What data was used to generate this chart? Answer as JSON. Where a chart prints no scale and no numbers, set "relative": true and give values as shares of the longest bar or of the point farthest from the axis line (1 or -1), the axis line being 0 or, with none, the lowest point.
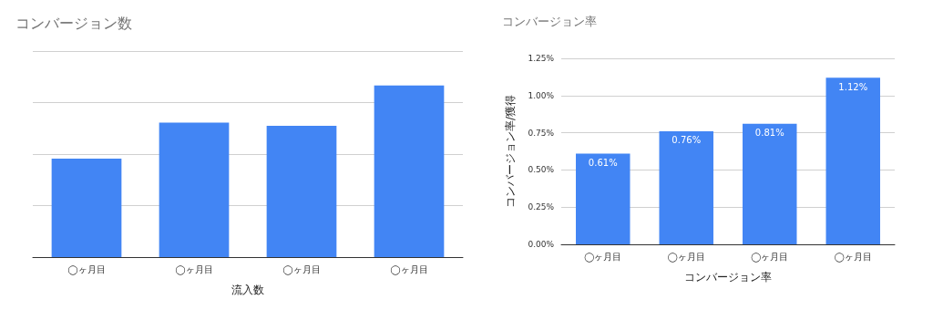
{
  "chart_data": [
    {
      "type": "bar",
      "title": "コンバージョン数",
      "xlabel": "流入数",
      "categories": [
        "◯ヶ月目",
        "◯ヶ月目",
        "◯ヶ月目",
        "◯ヶ月目"
      ],
      "values": [
        0.573,
        0.783,
        0.764,
        1
      ],
      "color": "#4285f4",
      "relative": true,
      "grid": "y"
    },
    {
      "type": "bar",
      "title": "コンバージョン率",
      "xlabel": "コンバージョン率",
      "ylabel": "コンバージョン率/獲得",
      "categories": [
        "◯ヶ月目",
        "◯ヶ月目",
        "◯ヶ月目",
        "◯ヶ月目"
      ],
      "values": [
        0.61,
        0.76,
        0.81,
        1.12
      ],
      "value_labels": [
        "0.61%",
        "0.76%",
        "0.81%",
        "1.12%"
      ],
      "color": "#4285f4",
      "ylim": [
        0,
        1.25
      ],
      "yticks": [
        {
          "value": 0,
          "label": "0.00%"
        },
        {
          "value": 0.25,
          "label": "0.25%"
        },
        {
          "value": 0.5,
          "label": "0.50%"
        },
        {
          "value": 0.75,
          "label": "0.75%"
        },
        {
          "value": 1,
          "label": "1.00%"
        },
        {
          "value": 1.25,
          "label": "1.25%"
        }
      ],
      "grid": "y"
    }
  ]
}
